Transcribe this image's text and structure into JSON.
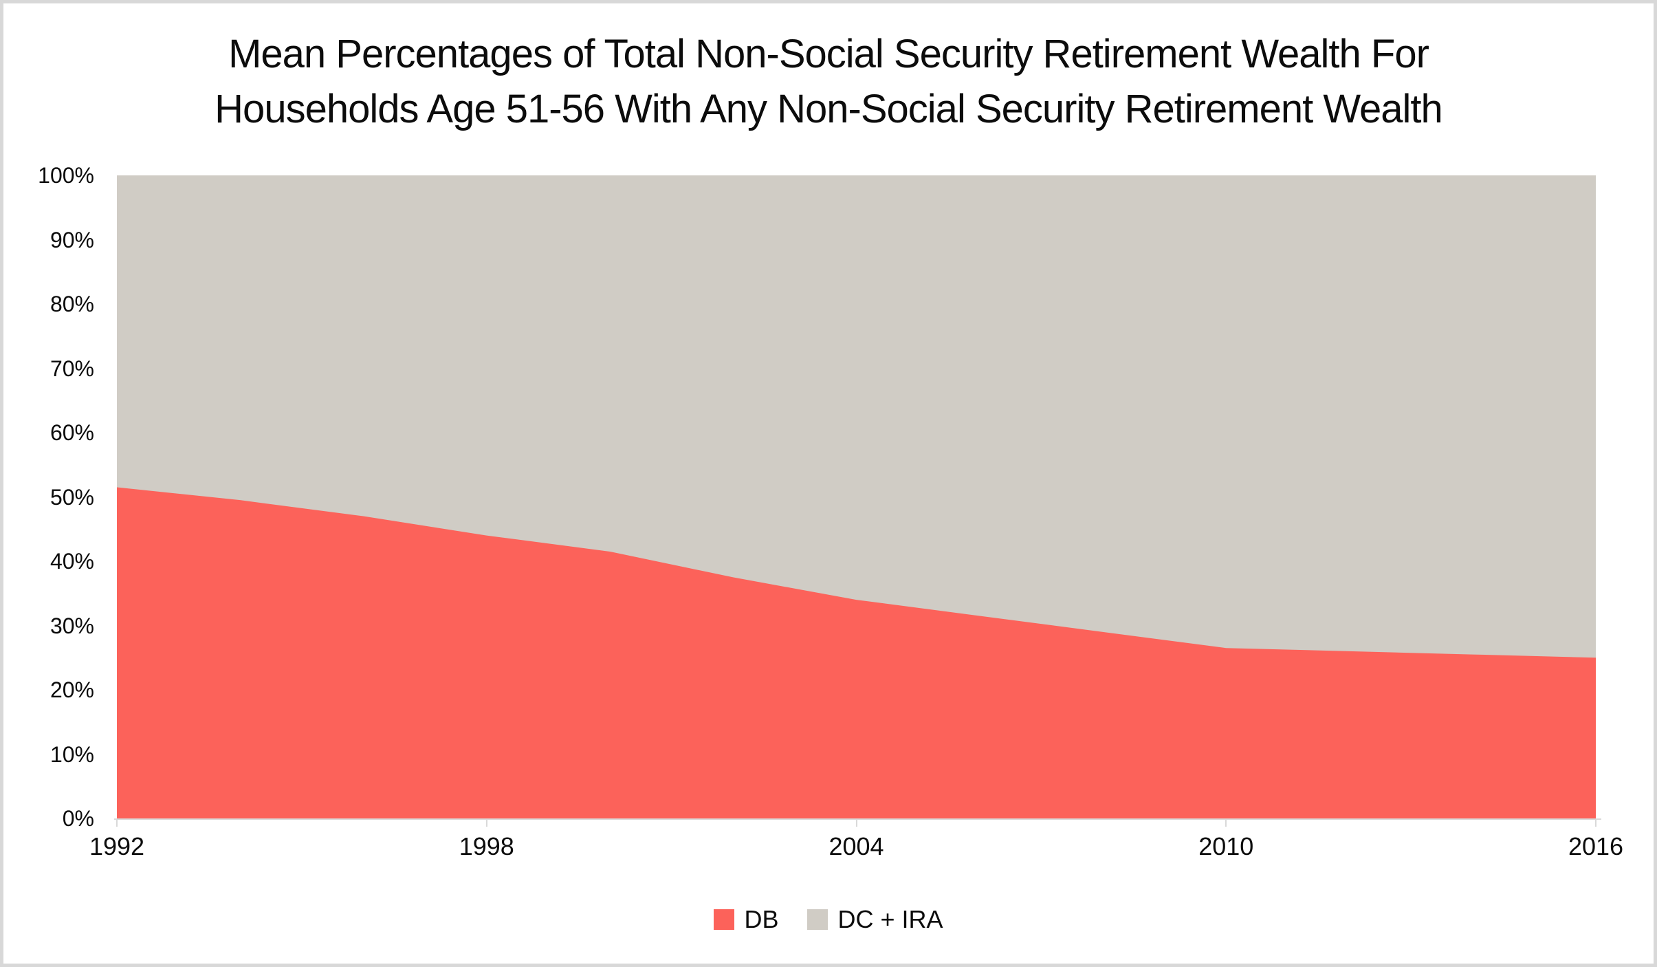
{
  "page": {
    "background": "#ffffff",
    "frame_border_color": "#d8d8d8",
    "text_color": "#0c0c0c",
    "axis_line_color": "#d9d9d9"
  },
  "chart_data": {
    "type": "area",
    "variant": "100%-stacked-area",
    "title_lines": [
      "Mean Percentages of Total Non-Social Security Retirement Wealth For",
      "Households Age 51-56 With Any Non-Social Security Retirement Wealth"
    ],
    "xlabel": "",
    "ylabel": "",
    "x": [
      1992,
      1994,
      1996,
      1998,
      2000,
      2002,
      2004,
      2006,
      2008,
      2010,
      2012,
      2014,
      2016
    ],
    "series": [
      {
        "name": "DB",
        "color": "#fc625a",
        "values": [
          51.5,
          49.5,
          47,
          44,
          41.5,
          37.5,
          34,
          31.5,
          29,
          26.5,
          26,
          25.5,
          25
        ]
      },
      {
        "name": "DC + IRA",
        "color": "#d0ccc5",
        "values": [
          48.5,
          50.5,
          53,
          56,
          58.5,
          62.5,
          66,
          68.5,
          71,
          73.5,
          74,
          74.5,
          75
        ]
      }
    ],
    "ylim": [
      0,
      100
    ],
    "y_ticks": [
      {
        "label": "0%",
        "value": 0
      },
      {
        "label": "10%",
        "value": 10
      },
      {
        "label": "20%",
        "value": 20
      },
      {
        "label": "30%",
        "value": 30
      },
      {
        "label": "40%",
        "value": 40
      },
      {
        "label": "50%",
        "value": 50
      },
      {
        "label": "60%",
        "value": 60
      },
      {
        "label": "70%",
        "value": 70
      },
      {
        "label": "80%",
        "value": 80
      },
      {
        "label": "90%",
        "value": 90
      },
      {
        "label": "100%",
        "value": 100
      }
    ],
    "x_ticks": [
      {
        "label": "1992",
        "value": 1992
      },
      {
        "label": "1998",
        "value": 1998
      },
      {
        "label": "2004",
        "value": 2004
      },
      {
        "label": "2010",
        "value": 2010
      },
      {
        "label": "2016",
        "value": 2016
      }
    ],
    "grid": false,
    "legend_position": "bottom",
    "legend_labels": [
      "DB",
      "DC + IRA"
    ]
  }
}
